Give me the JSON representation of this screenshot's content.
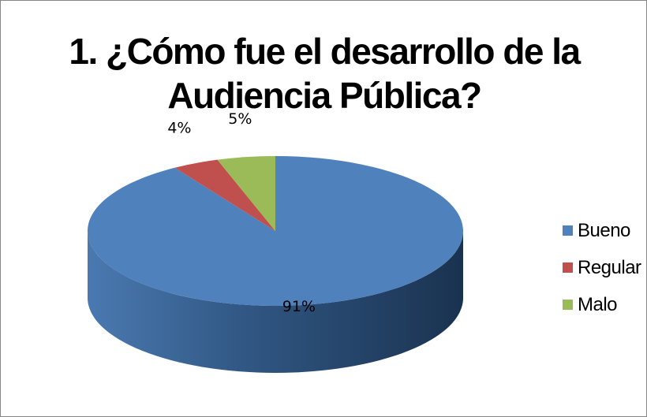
{
  "chart_data": {
    "type": "pie",
    "title": "1. ¿Cómo fue el desarrollo de la Audiencia Pública?",
    "categories": [
      "Bueno",
      "Regular",
      "Malo"
    ],
    "values": [
      91,
      4,
      5
    ],
    "data_labels": [
      "91%",
      "4%",
      "5%"
    ],
    "colors": [
      "#4F81BD",
      "#C0504D",
      "#9BBB59"
    ],
    "style": "3d",
    "legend_position": "right"
  }
}
